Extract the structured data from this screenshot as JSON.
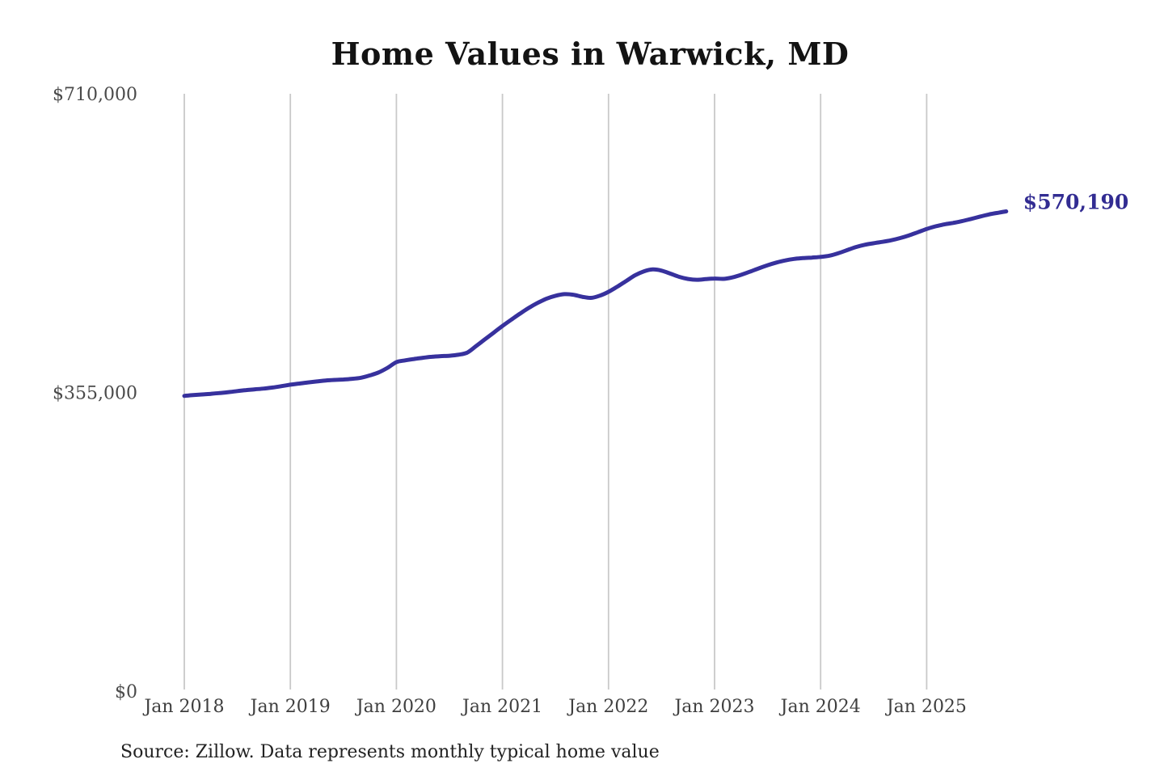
{
  "chart_data": {
    "type": "line",
    "title": "Home Values in Warwick, MD",
    "series_name": "Monthly typical home value",
    "unit": "USD",
    "x_start": "Jan 2018",
    "x_end": "Oct 2025",
    "x_tick_labels": [
      "Jan 2018",
      "Jan 2019",
      "Jan 2020",
      "Jan 2021",
      "Jan 2022",
      "Jan 2023",
      "Jan 2024",
      "Jan 2025"
    ],
    "y_ticks": [
      {
        "value": 0,
        "label": "$0"
      },
      {
        "value": 355000,
        "label": "$355,000"
      },
      {
        "value": 710000,
        "label": "$710,000"
      }
    ],
    "ylim": [
      0,
      710000
    ],
    "grid": "vertical-only",
    "legend": "none",
    "line_color": "#37319d",
    "end_label_color": "#322c92",
    "gridline_color": "#c9c9c9",
    "axis_label_color": "#4a4a4a",
    "end_label": "$570,190",
    "last_value": 570190,
    "monthly_values": [
      350900,
      351800,
      352600,
      353400,
      354300,
      355400,
      356600,
      357800,
      358700,
      359600,
      360900,
      362500,
      364200,
      365600,
      366900,
      368100,
      369200,
      369900,
      370400,
      371200,
      372500,
      375300,
      378800,
      384300,
      391000,
      393100,
      394800,
      396200,
      397400,
      398100,
      398600,
      399800,
      402300,
      410000,
      418000,
      426000,
      434000,
      441500,
      448800,
      455600,
      461500,
      466500,
      469900,
      471800,
      471200,
      468800,
      467400,
      470000,
      474600,
      480800,
      487500,
      494200,
      498900,
      501200,
      499800,
      496200,
      492400,
      489900,
      488900,
      489700,
      490400,
      490000,
      491700,
      494800,
      498500,
      502500,
      506200,
      509400,
      511900,
      513700,
      514700,
      515300,
      516100,
      517600,
      520500,
      524200,
      527800,
      530500,
      532400,
      534000,
      535900,
      538500,
      541700,
      545400,
      549300,
      552400,
      554700,
      556500,
      558600,
      561200,
      563900,
      566500,
      568400,
      570190
    ]
  },
  "footer": {
    "source": "Source: Zillow. Data represents monthly typical home value"
  }
}
